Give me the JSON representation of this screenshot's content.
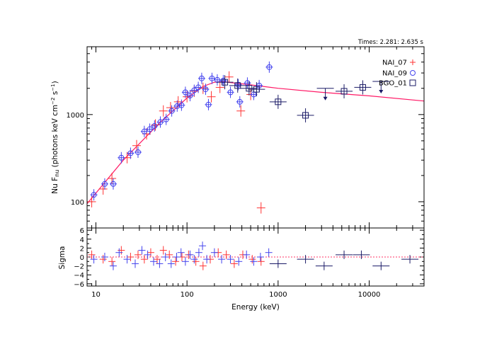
{
  "chart_data": [
    {
      "type": "scatter",
      "panel": "spectrum",
      "annotation": "Times: 2.281: 2.635 s",
      "xlabel": "",
      "ylabel_main": "Nu F",
      "ylabel_sub": "nu",
      "ylabel_units": "(photons keV cm",
      "ylabel_exp1": "−2",
      "ylabel_mid": " s",
      "ylabel_exp2": "−1",
      "ylabel_close": ")",
      "xscale": "log",
      "yscale": "log",
      "xlim": [
        8,
        40000
      ],
      "ylim": [
        50,
        6000
      ],
      "yticks": [
        {
          "value": 100,
          "label": "100"
        },
        {
          "value": 1000,
          "label": "1000"
        }
      ],
      "model": {
        "color": "#ff1a66",
        "points": [
          [
            8,
            95
          ],
          [
            20,
            300
          ],
          [
            50,
            800
          ],
          [
            100,
            1550
          ],
          [
            150,
            2100
          ],
          [
            200,
            2350
          ],
          [
            250,
            2380
          ],
          [
            300,
            2330
          ],
          [
            400,
            2250
          ],
          [
            600,
            2140
          ],
          [
            1000,
            2000
          ],
          [
            3000,
            1800
          ],
          [
            10000,
            1640
          ],
          [
            40000,
            1430
          ]
        ]
      },
      "series": [
        {
          "name": "NAI_07",
          "color": "#ff3333",
          "marker": "plus",
          "points": [
            {
              "x": 9,
              "y": 100
            },
            {
              "x": 12,
              "y": 140
            },
            {
              "x": 15,
              "y": 185
            },
            {
              "x": 22,
              "y": 320
            },
            {
              "x": 28,
              "y": 440
            },
            {
              "x": 36,
              "y": 600
            },
            {
              "x": 45,
              "y": 760
            },
            {
              "x": 55,
              "y": 1100
            },
            {
              "x": 66,
              "y": 1200
            },
            {
              "x": 80,
              "y": 1400
            },
            {
              "x": 100,
              "y": 1600
            },
            {
              "x": 120,
              "y": 1850
            },
            {
              "x": 150,
              "y": 2000
            },
            {
              "x": 185,
              "y": 1600
            },
            {
              "x": 230,
              "y": 2050
            },
            {
              "x": 290,
              "y": 2700
            },
            {
              "x": 390,
              "y": 1100
            },
            {
              "x": 500,
              "y": 1700
            },
            {
              "x": 650,
              "y": 85
            }
          ]
        },
        {
          "name": "NAI_09",
          "color": "#4444ee",
          "marker": "circle",
          "points": [
            {
              "x": 9.5,
              "y": 120
            },
            {
              "x": 12.5,
              "y": 160
            },
            {
              "x": 15.5,
              "y": 160
            },
            {
              "x": 19,
              "y": 320
            },
            {
              "x": 24,
              "y": 360
            },
            {
              "x": 29,
              "y": 370
            },
            {
              "x": 34,
              "y": 640
            },
            {
              "x": 39,
              "y": 680
            },
            {
              "x": 44,
              "y": 740
            },
            {
              "x": 51,
              "y": 820
            },
            {
              "x": 59,
              "y": 880
            },
            {
              "x": 68,
              "y": 1100
            },
            {
              "x": 78,
              "y": 1250
            },
            {
              "x": 87,
              "y": 1280
            },
            {
              "x": 96,
              "y": 1800
            },
            {
              "x": 108,
              "y": 1650
            },
            {
              "x": 120,
              "y": 1900
            },
            {
              "x": 133,
              "y": 2050
            },
            {
              "x": 145,
              "y": 2600
            },
            {
              "x": 160,
              "y": 1950
            },
            {
              "x": 172,
              "y": 1300
            },
            {
              "x": 188,
              "y": 2600
            },
            {
              "x": 215,
              "y": 2500
            },
            {
              "x": 250,
              "y": 2450
            },
            {
              "x": 300,
              "y": 1800
            },
            {
              "x": 365,
              "y": 2200
            },
            {
              "x": 380,
              "y": 1400
            },
            {
              "x": 460,
              "y": 2300
            },
            {
              "x": 540,
              "y": 1700
            },
            {
              "x": 620,
              "y": 2150
            },
            {
              "x": 800,
              "y": 3500
            }
          ]
        },
        {
          "name": "BGO_01",
          "color": "#1a1a66",
          "marker": "square",
          "points": [
            {
              "x": 260,
              "y": 2350
            },
            {
              "x": 360,
              "y": 2150
            },
            {
              "x": 480,
              "y": 2000
            },
            {
              "x": 580,
              "y": 1950
            },
            {
              "x": 1000,
              "y": 1400
            },
            {
              "x": 2000,
              "y": 980
            },
            {
              "x": 5300,
              "y": 1850
            },
            {
              "x": 8500,
              "y": 2050
            }
          ]
        }
      ],
      "upper_limits": [
        {
          "x": 3300,
          "y": 2000,
          "color": "#1a1a66"
        },
        {
          "x": 13500,
          "y": 2400,
          "color": "#1a1a66"
        }
      ]
    },
    {
      "type": "scatter",
      "panel": "residuals",
      "ylabel": "Sigma",
      "xlabel": "Energy (keV)",
      "xscale": "log",
      "xlim": [
        8,
        40000
      ],
      "ylim": [
        -6.5,
        6.5
      ],
      "yticks": [
        {
          "value": 6,
          "label": "6"
        },
        {
          "value": 4,
          "label": "4"
        },
        {
          "value": 2,
          "label": "2"
        },
        {
          "value": 0,
          "label": "0"
        },
        {
          "value": -2,
          "label": "−2"
        },
        {
          "value": -4,
          "label": "−4"
        },
        {
          "value": -6,
          "label": "−6"
        }
      ],
      "xticks": [
        {
          "value": 10,
          "label": "10"
        },
        {
          "value": 100,
          "label": "100"
        },
        {
          "value": 1000,
          "label": "1000"
        },
        {
          "value": 10000,
          "label": "10000"
        }
      ],
      "series": [
        {
          "name": "NAI_07",
          "color": "#ff3333",
          "points": [
            {
              "x": 9,
              "y": 0.5
            },
            {
              "x": 12,
              "y": -0.5
            },
            {
              "x": 15,
              "y": -1
            },
            {
              "x": 19,
              "y": 1.5
            },
            {
              "x": 24,
              "y": 0
            },
            {
              "x": 29,
              "y": 0.5
            },
            {
              "x": 34,
              "y": -0.5
            },
            {
              "x": 40,
              "y": 1
            },
            {
              "x": 47,
              "y": -0.5
            },
            {
              "x": 55,
              "y": 1.5
            },
            {
              "x": 64,
              "y": 0.5
            },
            {
              "x": 75,
              "y": -1
            },
            {
              "x": 88,
              "y": 0
            },
            {
              "x": 104,
              "y": 0.5
            },
            {
              "x": 125,
              "y": -1
            },
            {
              "x": 150,
              "y": -2
            },
            {
              "x": 180,
              "y": -0.5
            },
            {
              "x": 220,
              "y": 1
            },
            {
              "x": 270,
              "y": 0.5
            },
            {
              "x": 330,
              "y": -1.5
            },
            {
              "x": 410,
              "y": 0.5
            },
            {
              "x": 520,
              "y": -0.5
            },
            {
              "x": 650,
              "y": -1
            }
          ]
        },
        {
          "name": "NAI_09",
          "color": "#4444ee",
          "points": [
            {
              "x": 9.5,
              "y": -0.5
            },
            {
              "x": 12.5,
              "y": 0
            },
            {
              "x": 15.5,
              "y": -2
            },
            {
              "x": 18,
              "y": 1
            },
            {
              "x": 22,
              "y": -0.5
            },
            {
              "x": 27,
              "y": -1.5
            },
            {
              "x": 32,
              "y": 1.5
            },
            {
              "x": 37,
              "y": 0.5
            },
            {
              "x": 43,
              "y": -1
            },
            {
              "x": 50,
              "y": -1.5
            },
            {
              "x": 58,
              "y": 0
            },
            {
              "x": 67,
              "y": -1.5
            },
            {
              "x": 77,
              "y": 0
            },
            {
              "x": 86,
              "y": 1
            },
            {
              "x": 96,
              "y": -1
            },
            {
              "x": 108,
              "y": 0.5
            },
            {
              "x": 120,
              "y": -0.5
            },
            {
              "x": 135,
              "y": 1
            },
            {
              "x": 148,
              "y": 2.5
            },
            {
              "x": 165,
              "y": -0.5
            },
            {
              "x": 200,
              "y": 1
            },
            {
              "x": 240,
              "y": -0.5
            },
            {
              "x": 300,
              "y": -0.5
            },
            {
              "x": 370,
              "y": -1
            },
            {
              "x": 450,
              "y": 0.5
            },
            {
              "x": 540,
              "y": -1
            },
            {
              "x": 640,
              "y": 0
            },
            {
              "x": 790,
              "y": 1
            }
          ]
        },
        {
          "name": "BGO_01",
          "color": "#1a1a66",
          "points": [
            {
              "x": 1000,
              "y": -1.5
            },
            {
              "x": 2000,
              "y": -0.5
            },
            {
              "x": 3200,
              "y": -2
            },
            {
              "x": 5300,
              "y": 0.5
            },
            {
              "x": 8200,
              "y": 0.5
            },
            {
              "x": 13500,
              "y": -2
            },
            {
              "x": 28000,
              "y": -0.5
            }
          ]
        }
      ]
    }
  ]
}
